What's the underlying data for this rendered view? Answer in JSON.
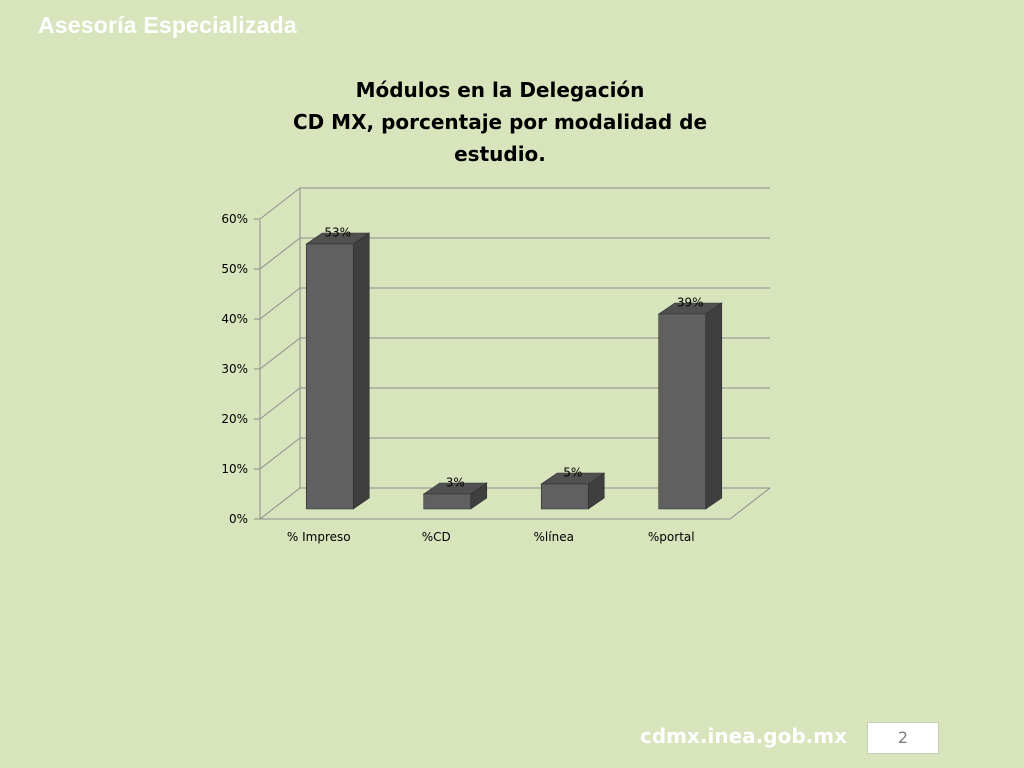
{
  "header": {
    "title": "Asesoría Especializada"
  },
  "chart_data": {
    "type": "bar",
    "title_lines": [
      "Módulos en la Delegación",
      "CD MX, porcentaje por modalidad de",
      "estudio."
    ],
    "categories": [
      "% Impreso",
      "%CD",
      "%línea",
      "%portal"
    ],
    "values": [
      53,
      3,
      5,
      39
    ],
    "data_labels": [
      "53%",
      "3%",
      "5%",
      "39%"
    ],
    "y_ticks": [
      "0%",
      "10%",
      "20%",
      "30%",
      "40%",
      "50%",
      "60%"
    ],
    "ylim": [
      0,
      60
    ],
    "grid": true,
    "legend": "none",
    "three_d": true,
    "colors": {
      "bar_front": "#606060",
      "bar_side": "#3f3f3f",
      "bar_top": "#505050",
      "gridline": "#8c8c8c",
      "text": "#000000"
    }
  },
  "footer": {
    "url": "cdmx.inea.gob.mx",
    "page_number": "2"
  }
}
